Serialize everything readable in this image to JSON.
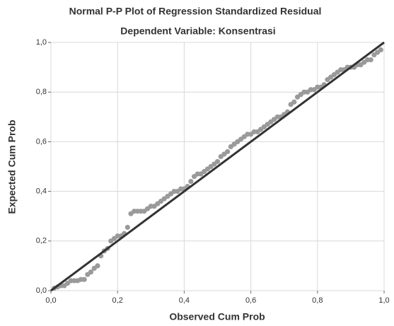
{
  "chart_data": {
    "type": "scatter",
    "title": "Normal P-P Plot of Regression Standardized Residual",
    "subtitle": "Dependent Variable: Konsentrasi",
    "x_label": "Observed Cum Prob",
    "y_label": "Expected Cum Prob",
    "xlim": [
      0,
      1
    ],
    "ylim": [
      0,
      1
    ],
    "xticks": [
      {
        "value": 0,
        "label": "0,0"
      },
      {
        "value": 0.2,
        "label": "0,2"
      },
      {
        "value": 0.4,
        "label": "0,4"
      },
      {
        "value": 0.6,
        "label": "0,6"
      },
      {
        "value": 0.8,
        "label": "0,8"
      },
      {
        "value": 1,
        "label": "1,0"
      }
    ],
    "yticks": [
      {
        "value": 0,
        "label": "0,0"
      },
      {
        "value": 0.2,
        "label": "0,2"
      },
      {
        "value": 0.4,
        "label": "0,4"
      },
      {
        "value": 0.6,
        "label": "0,6"
      },
      {
        "value": 0.8,
        "label": "0,8"
      },
      {
        "value": 1,
        "label": "1,0"
      }
    ],
    "grid": true,
    "color": "#9a9a9a",
    "reference_line": {
      "x": [
        0,
        1
      ],
      "y": [
        0,
        1
      ],
      "color": "#333333"
    },
    "x": [
      0.01,
      0.02,
      0.03,
      0.04,
      0.05,
      0.06,
      0.07,
      0.08,
      0.09,
      0.1,
      0.11,
      0.12,
      0.13,
      0.14,
      0.15,
      0.16,
      0.17,
      0.18,
      0.19,
      0.2,
      0.21,
      0.22,
      0.23,
      0.24,
      0.25,
      0.26,
      0.27,
      0.28,
      0.29,
      0.3,
      0.31,
      0.32,
      0.33,
      0.34,
      0.35,
      0.36,
      0.37,
      0.38,
      0.39,
      0.4,
      0.41,
      0.42,
      0.43,
      0.44,
      0.45,
      0.46,
      0.47,
      0.48,
      0.49,
      0.5,
      0.51,
      0.52,
      0.53,
      0.54,
      0.55,
      0.56,
      0.57,
      0.58,
      0.59,
      0.6,
      0.61,
      0.62,
      0.63,
      0.64,
      0.65,
      0.66,
      0.67,
      0.68,
      0.69,
      0.7,
      0.71,
      0.72,
      0.73,
      0.74,
      0.75,
      0.76,
      0.77,
      0.78,
      0.79,
      0.8,
      0.81,
      0.82,
      0.83,
      0.84,
      0.85,
      0.86,
      0.87,
      0.88,
      0.89,
      0.9,
      0.91,
      0.92,
      0.93,
      0.94,
      0.95,
      0.96,
      0.97,
      0.98,
      0.99
    ],
    "values": [
      0.01,
      0.015,
      0.02,
      0.02,
      0.03,
      0.04,
      0.04,
      0.04,
      0.045,
      0.045,
      0.065,
      0.075,
      0.09,
      0.1,
      0.14,
      0.16,
      0.17,
      0.2,
      0.21,
      0.22,
      0.22,
      0.23,
      0.255,
      0.31,
      0.32,
      0.32,
      0.32,
      0.32,
      0.33,
      0.34,
      0.34,
      0.35,
      0.36,
      0.37,
      0.38,
      0.39,
      0.4,
      0.4,
      0.41,
      0.41,
      0.42,
      0.44,
      0.46,
      0.47,
      0.47,
      0.48,
      0.49,
      0.5,
      0.51,
      0.52,
      0.54,
      0.55,
      0.56,
      0.58,
      0.59,
      0.6,
      0.61,
      0.62,
      0.63,
      0.63,
      0.64,
      0.64,
      0.65,
      0.66,
      0.67,
      0.68,
      0.69,
      0.7,
      0.7,
      0.71,
      0.72,
      0.75,
      0.76,
      0.78,
      0.79,
      0.8,
      0.8,
      0.81,
      0.81,
      0.82,
      0.82,
      0.83,
      0.85,
      0.86,
      0.87,
      0.88,
      0.89,
      0.89,
      0.9,
      0.9,
      0.9,
      0.91,
      0.91,
      0.92,
      0.93,
      0.93,
      0.95,
      0.96,
      0.97
    ]
  }
}
